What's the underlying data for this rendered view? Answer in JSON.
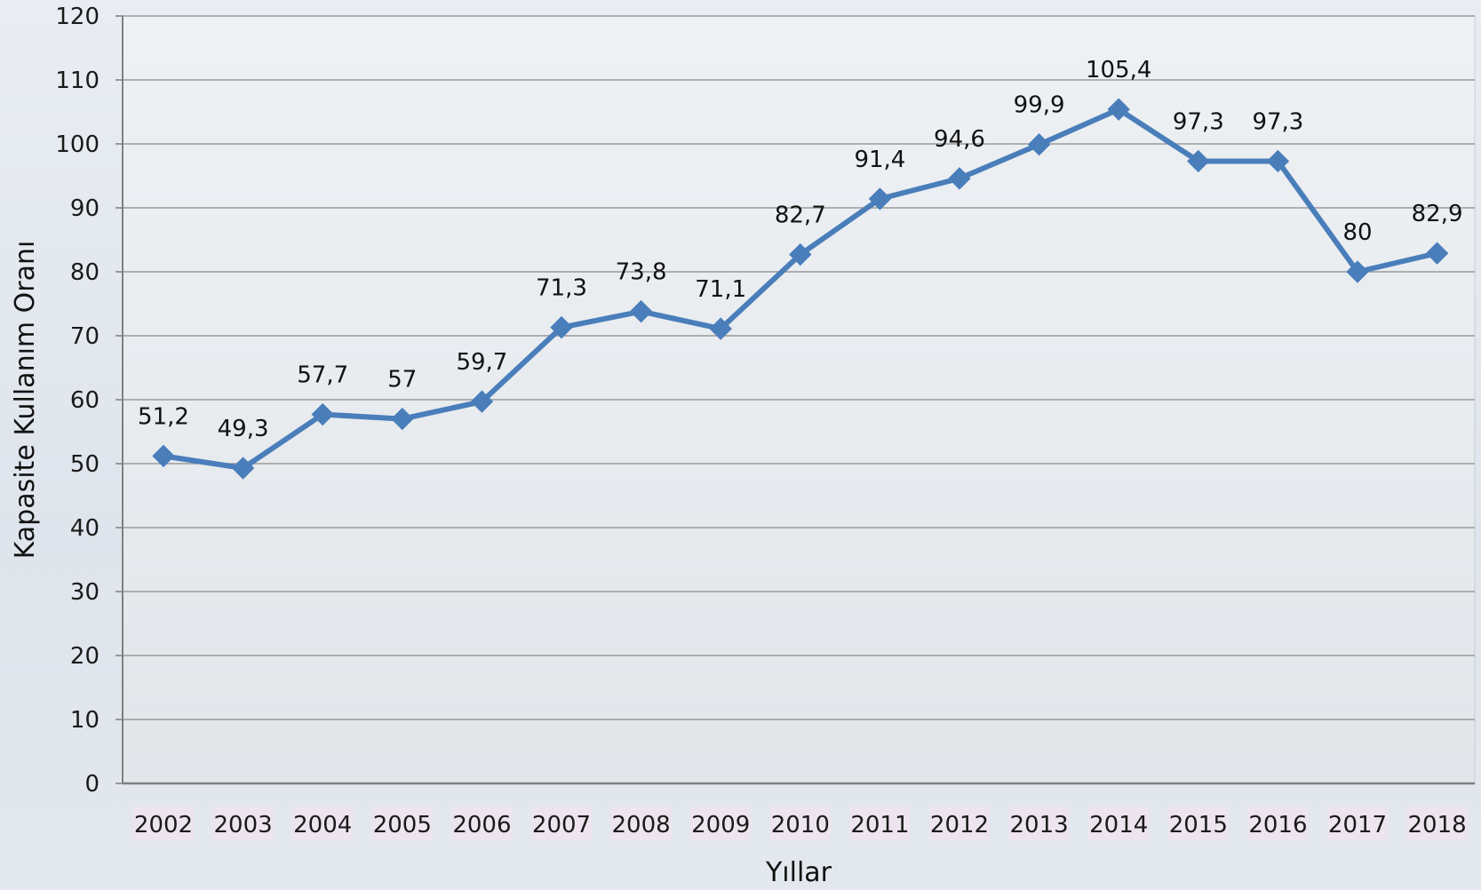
{
  "chart_data": {
    "type": "line",
    "title": "",
    "xlabel": "Yıllar",
    "ylabel": "Kapasite Kullanım Oranı",
    "ylim": [
      0,
      120
    ],
    "yticks": [
      "0",
      "10",
      "20",
      "30",
      "40",
      "50",
      "60",
      "70",
      "80",
      "90",
      "100",
      "110",
      "120"
    ],
    "grid": true,
    "legend": "none",
    "categories": [
      "2002",
      "2003",
      "2004",
      "2005",
      "2006",
      "2007",
      "2008",
      "2009",
      "2010",
      "2011",
      "2012",
      "2013",
      "2014",
      "2015",
      "2016",
      "2017",
      "2018"
    ],
    "series": [
      {
        "values": [
          51.2,
          49.3,
          57.7,
          57,
          59.7,
          71.3,
          73.8,
          71.1,
          82.7,
          91.4,
          94.6,
          99.9,
          105.4,
          97.3,
          97.3,
          80,
          82.9
        ],
        "labels": [
          "51,2",
          "49,3",
          "57,7",
          "57",
          "59,7",
          "71,3",
          "73,8",
          "71,1",
          "82,7",
          "91,4",
          "94,6",
          "99,9",
          "105,4",
          "97,3",
          "97,3",
          "80",
          "82,9"
        ],
        "color": "#4a7ebb"
      }
    ],
    "colors": {
      "line": "#4a7ebb",
      "plot_bg": "#e8ecf0",
      "grid": "#9a9a9a",
      "axis": "#7f7f7f",
      "tick_bg": "#ede4f0"
    }
  }
}
